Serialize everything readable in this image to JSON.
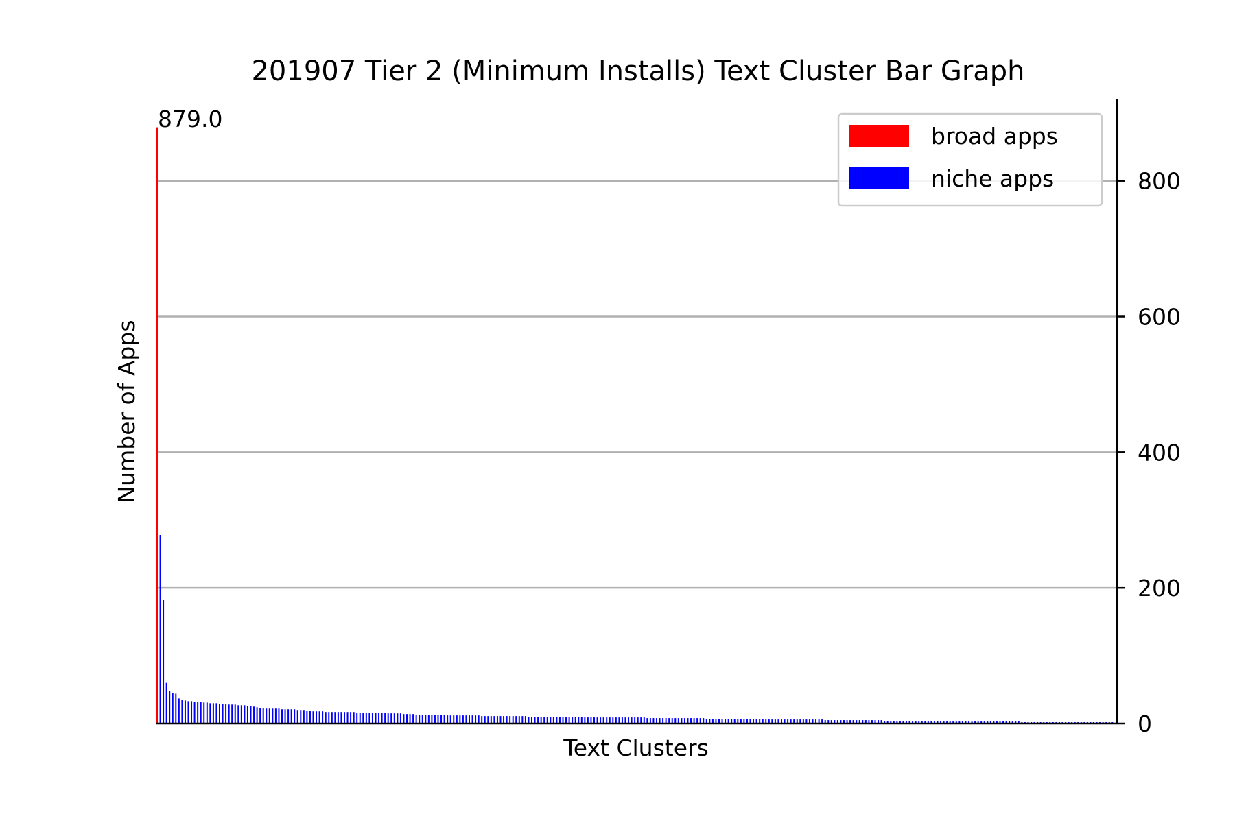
{
  "chart_data": {
    "type": "bar",
    "title": "201907 Tier 2 (Minimum Installs) Text Cluster Bar Graph",
    "xlabel": "Text Clusters",
    "ylabel": "Number of Apps",
    "ylim": [
      0,
      920
    ],
    "yticks": [
      0,
      200,
      400,
      600,
      800
    ],
    "ytick_labels": [
      "0",
      "200",
      "400",
      "600",
      "800"
    ],
    "y_axis_side": "right",
    "grid": "horizontal",
    "legend": {
      "placement": "top-right",
      "entries": [
        {
          "label": "broad apps",
          "color": "#ff0000"
        },
        {
          "label": "niche apps",
          "color": "#0000ff"
        }
      ]
    },
    "annotation": {
      "text": "879.0",
      "target": "broad apps"
    },
    "series": [
      {
        "name": "broad apps",
        "color": "#ff0000",
        "values": [
          879
        ]
      },
      {
        "name": "niche apps",
        "color": "#0000ff",
        "values": [
          278,
          182,
          60,
          48,
          45,
          44,
          37,
          35,
          34,
          33,
          33,
          32,
          32,
          32,
          31,
          31,
          30,
          30,
          30,
          29,
          29,
          29,
          28,
          28,
          28,
          27,
          27,
          27,
          26,
          26,
          25,
          24,
          23,
          23,
          22,
          22,
          22,
          22,
          22,
          21,
          21,
          21,
          21,
          21,
          20,
          20,
          20,
          19,
          19,
          18,
          18,
          18,
          18,
          17,
          17,
          17,
          17,
          17,
          17,
          17,
          17,
          17,
          17,
          16,
          16,
          16,
          16,
          16,
          16,
          16,
          16,
          16,
          16,
          15,
          15,
          15,
          15,
          15,
          14,
          14,
          14,
          14,
          13,
          13,
          13,
          13,
          13,
          13,
          13,
          13,
          13,
          13,
          12,
          12,
          12,
          12,
          12,
          12,
          12,
          12,
          12,
          12,
          12,
          11,
          11,
          11,
          11,
          11,
          11,
          11,
          11,
          11,
          11,
          11,
          11,
          11,
          11,
          11,
          10,
          10,
          10,
          10,
          10,
          10,
          10,
          10,
          10,
          10,
          10,
          10,
          10,
          10,
          10,
          10,
          10,
          10,
          9,
          9,
          9,
          9,
          9,
          9,
          9,
          9,
          9,
          9,
          9,
          9,
          9,
          9,
          9,
          9,
          9,
          9,
          9,
          9,
          8,
          8,
          8,
          8,
          8,
          8,
          8,
          8,
          8,
          8,
          8,
          8,
          8,
          8,
          8,
          8,
          8,
          8,
          8,
          7,
          7,
          7,
          7,
          7,
          7,
          7,
          7,
          7,
          7,
          7,
          7,
          7,
          7,
          7,
          7,
          7,
          7,
          7,
          6,
          6,
          6,
          6,
          6,
          6,
          6,
          6,
          6,
          6,
          6,
          6,
          6,
          6,
          6,
          6,
          6,
          6,
          6,
          5,
          5,
          5,
          5,
          5,
          5,
          5,
          5,
          5,
          5,
          5,
          5,
          5,
          5,
          5,
          5,
          5,
          5,
          5,
          4,
          4,
          4,
          4,
          4,
          4,
          4,
          4,
          4,
          4,
          4,
          4,
          4,
          4,
          4,
          4,
          4,
          4,
          4,
          3,
          3,
          3,
          3,
          3,
          3,
          3,
          3,
          3,
          3,
          3,
          3,
          3,
          3,
          3,
          3,
          3,
          3,
          3,
          3,
          3,
          3,
          3,
          3,
          3,
          2,
          2,
          2,
          2,
          2,
          2,
          2,
          2,
          2,
          2,
          2,
          2,
          2,
          2,
          2,
          2,
          2,
          2,
          2,
          2,
          2,
          2,
          2,
          2,
          2,
          2,
          2,
          2,
          2,
          2
        ]
      }
    ]
  }
}
